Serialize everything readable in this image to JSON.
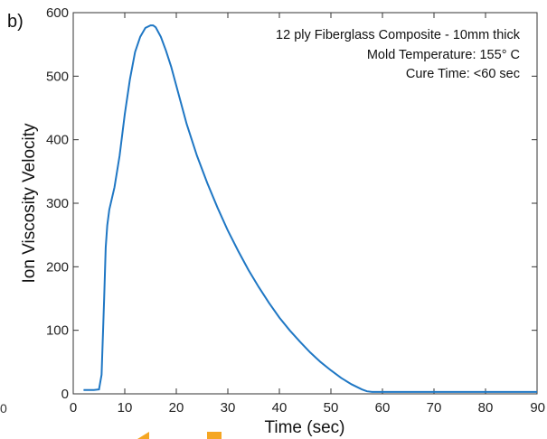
{
  "panel_label": "b)",
  "left_edge_tick": "0",
  "colors": {
    "line": "#1f77c4",
    "axis": "#222222",
    "box": "#333333",
    "orange_marks": "#f5a623"
  },
  "chart_data": {
    "type": "line",
    "title": "",
    "xlabel": "Time (sec)",
    "ylabel": "Ion Viscosity Velocity",
    "xlim": [
      0,
      90
    ],
    "ylim": [
      0,
      600
    ],
    "xticks": [
      0,
      10,
      20,
      30,
      40,
      50,
      60,
      70,
      80,
      90
    ],
    "yticks": [
      0,
      100,
      200,
      300,
      400,
      500,
      600
    ],
    "grid": false,
    "annotations": [
      "12 ply Fiberglass Composite - 10mm thick",
      "Mold Temperature: 155° C",
      "Cure Time: <60 sec"
    ],
    "series": [
      {
        "x": [
          2,
          3,
          4,
          5,
          5.5,
          6,
          6.3,
          6.6,
          7,
          8,
          9,
          10,
          11,
          12,
          13,
          14,
          15,
          15.5,
          16,
          17,
          18,
          19,
          20,
          22,
          24,
          26,
          28,
          30,
          32,
          34,
          36,
          38,
          40,
          42,
          44,
          46,
          48,
          50,
          52,
          54,
          56,
          57,
          58,
          59,
          60,
          65,
          70,
          75,
          80,
          85,
          90
        ],
        "y": [
          6,
          6,
          6,
          7,
          30,
          150,
          230,
          265,
          290,
          325,
          375,
          440,
          495,
          538,
          562,
          576,
          580,
          580,
          577,
          562,
          540,
          515,
          485,
          425,
          375,
          332,
          293,
          257,
          225,
          195,
          168,
          143,
          120,
          100,
          82,
          65,
          50,
          37,
          25,
          15,
          7,
          4,
          3,
          3,
          3,
          3,
          3,
          3,
          3,
          3,
          3
        ]
      }
    ]
  }
}
